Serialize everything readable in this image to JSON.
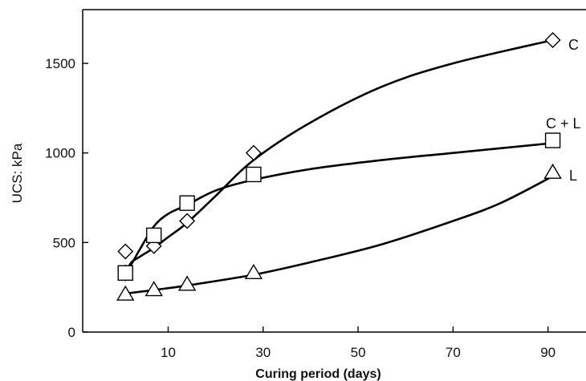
{
  "chart_data": {
    "type": "line",
    "xlabel": "Curing period (days)",
    "ylabel": "UCS: kPa",
    "xlim": [
      -8,
      98
    ],
    "ylim": [
      0,
      1800
    ],
    "xticks": [
      10,
      30,
      50,
      70,
      90
    ],
    "yticks": [
      0,
      500,
      1000,
      1500
    ],
    "grid": false,
    "legend": "none",
    "series": [
      {
        "name": "C",
        "marker": "diamond",
        "points": [
          [
            1,
            450
          ],
          [
            7,
            480
          ],
          [
            14,
            620
          ],
          [
            28,
            1000
          ],
          [
            91,
            1630
          ]
        ],
        "curve": [
          [
            1,
            290
          ],
          [
            2,
            380
          ],
          [
            4,
            420
          ],
          [
            7,
            470
          ],
          [
            10,
            530
          ],
          [
            14,
            610
          ],
          [
            20,
            760
          ],
          [
            28,
            960
          ],
          [
            40,
            1170
          ],
          [
            55,
            1370
          ],
          [
            70,
            1500
          ],
          [
            91,
            1630
          ]
        ]
      },
      {
        "name": "C + L",
        "marker": "square",
        "points": [
          [
            1,
            330
          ],
          [
            7,
            540
          ],
          [
            14,
            720
          ],
          [
            28,
            880
          ],
          [
            91,
            1070
          ]
        ],
        "curve": [
          [
            1,
            370
          ],
          [
            2,
            370
          ],
          [
            4,
            460
          ],
          [
            7,
            590
          ],
          [
            10,
            660
          ],
          [
            14,
            710
          ],
          [
            20,
            790
          ],
          [
            28,
            850
          ],
          [
            40,
            910
          ],
          [
            55,
            960
          ],
          [
            70,
            1000
          ],
          [
            91,
            1055
          ]
        ]
      },
      {
        "name": "L",
        "marker": "triangle",
        "points": [
          [
            1,
            210
          ],
          [
            7,
            235
          ],
          [
            14,
            265
          ],
          [
            28,
            330
          ],
          [
            91,
            890
          ]
        ],
        "curve": [
          [
            1,
            215
          ],
          [
            7,
            235
          ],
          [
            14,
            260
          ],
          [
            28,
            320
          ],
          [
            40,
            390
          ],
          [
            55,
            490
          ],
          [
            70,
            620
          ],
          [
            80,
            720
          ],
          [
            91,
            870
          ]
        ]
      }
    ]
  }
}
